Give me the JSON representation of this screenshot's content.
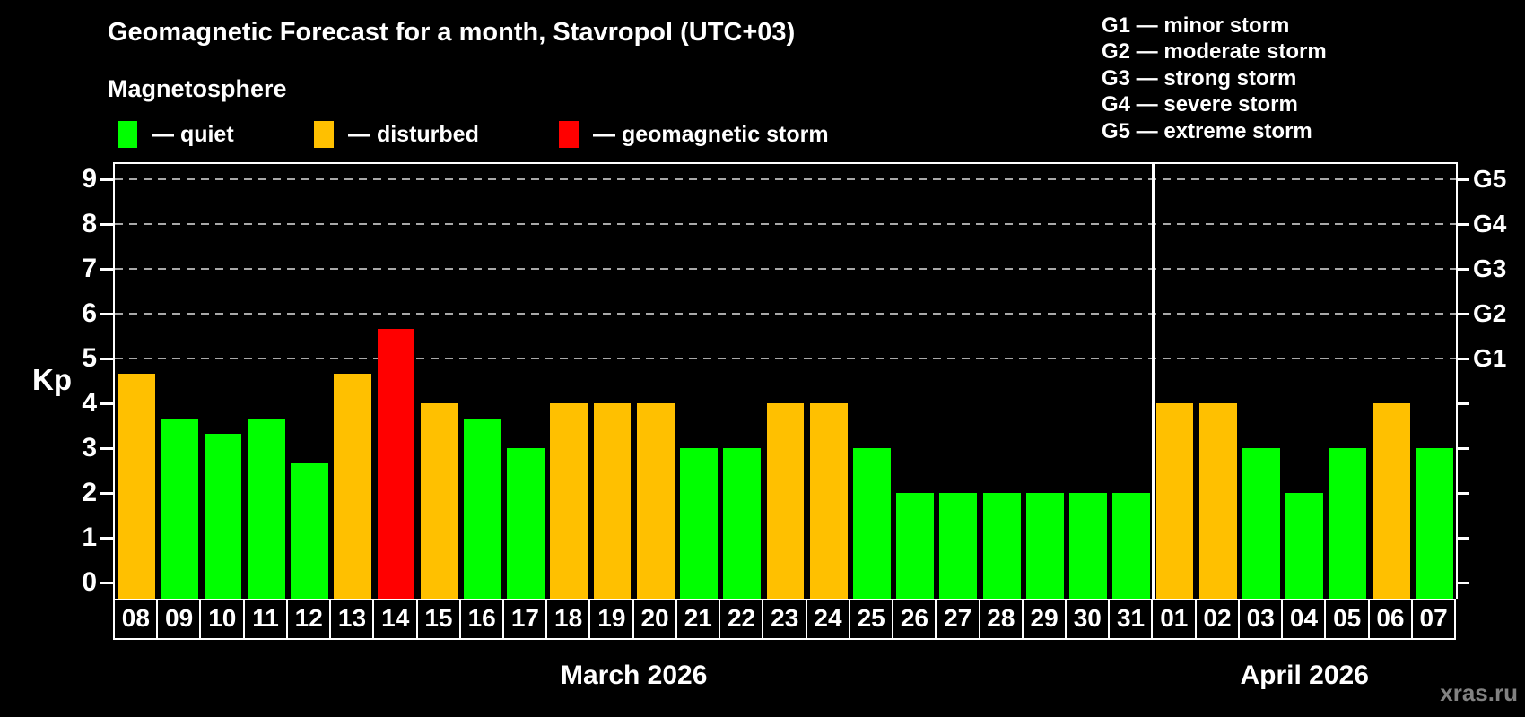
{
  "title": "Geomagnetic Forecast for a month, Stavropol (UTC+03)",
  "subtitle": "Magnetosphere",
  "watermark": "xras.ru",
  "legend": [
    {
      "key": "quiet",
      "label": "— quiet",
      "color": "#00ff00"
    },
    {
      "key": "disturbed",
      "label": "— disturbed",
      "color": "#ffc000"
    },
    {
      "key": "storm",
      "label": "— geomagnetic storm",
      "color": "#ff0000"
    }
  ],
  "storm_scale_legend": [
    "G1 — minor storm",
    "G2 — moderate storm",
    "G3 — strong storm",
    "G4 — severe storm",
    "G5 — extreme storm"
  ],
  "chart_data": {
    "type": "bar",
    "ylabel": "Kp",
    "ylim": [
      0,
      9.4
    ],
    "yticks": [
      0,
      1,
      2,
      3,
      4,
      5,
      6,
      7,
      8,
      9
    ],
    "gridlines_kp": [
      5,
      6,
      7,
      8,
      9
    ],
    "grid_style": "dashed",
    "right_axis": [
      {
        "kp": 5,
        "label": "G1"
      },
      {
        "kp": 6,
        "label": "G2"
      },
      {
        "kp": 7,
        "label": "G3"
      },
      {
        "kp": 8,
        "label": "G4"
      },
      {
        "kp": 9,
        "label": "G5"
      }
    ],
    "status_colors": {
      "quiet": "#00ff00",
      "disturbed": "#ffc000",
      "storm": "#ff0000"
    },
    "months": [
      {
        "label": "March 2026",
        "days": 24
      },
      {
        "label": "April 2026",
        "days": 7
      }
    ],
    "bars": [
      {
        "day": "08",
        "kp": 4.67,
        "condition": "disturbed"
      },
      {
        "day": "09",
        "kp": 3.67,
        "condition": "quiet"
      },
      {
        "day": "10",
        "kp": 3.33,
        "condition": "quiet"
      },
      {
        "day": "11",
        "kp": 3.67,
        "condition": "quiet"
      },
      {
        "day": "12",
        "kp": 2.67,
        "condition": "quiet"
      },
      {
        "day": "13",
        "kp": 4.67,
        "condition": "disturbed"
      },
      {
        "day": "14",
        "kp": 5.67,
        "condition": "storm"
      },
      {
        "day": "15",
        "kp": 4.0,
        "condition": "disturbed"
      },
      {
        "day": "16",
        "kp": 3.67,
        "condition": "quiet"
      },
      {
        "day": "17",
        "kp": 3.0,
        "condition": "quiet"
      },
      {
        "day": "18",
        "kp": 4.0,
        "condition": "disturbed"
      },
      {
        "day": "19",
        "kp": 4.0,
        "condition": "disturbed"
      },
      {
        "day": "20",
        "kp": 4.0,
        "condition": "disturbed"
      },
      {
        "day": "21",
        "kp": 3.0,
        "condition": "quiet"
      },
      {
        "day": "22",
        "kp": 3.0,
        "condition": "quiet"
      },
      {
        "day": "23",
        "kp": 4.0,
        "condition": "disturbed"
      },
      {
        "day": "24",
        "kp": 4.0,
        "condition": "disturbed"
      },
      {
        "day": "25",
        "kp": 3.0,
        "condition": "quiet"
      },
      {
        "day": "26",
        "kp": 2.0,
        "condition": "quiet"
      },
      {
        "day": "27",
        "kp": 2.0,
        "condition": "quiet"
      },
      {
        "day": "28",
        "kp": 2.0,
        "condition": "quiet"
      },
      {
        "day": "29",
        "kp": 2.0,
        "condition": "quiet"
      },
      {
        "day": "30",
        "kp": 2.0,
        "condition": "quiet"
      },
      {
        "day": "31",
        "kp": 2.0,
        "condition": "quiet"
      },
      {
        "day": "01",
        "kp": 4.0,
        "condition": "disturbed"
      },
      {
        "day": "02",
        "kp": 4.0,
        "condition": "disturbed"
      },
      {
        "day": "03",
        "kp": 3.0,
        "condition": "quiet"
      },
      {
        "day": "04",
        "kp": 2.0,
        "condition": "quiet"
      },
      {
        "day": "05",
        "kp": 3.0,
        "condition": "quiet"
      },
      {
        "day": "06",
        "kp": 4.0,
        "condition": "disturbed"
      },
      {
        "day": "07",
        "kp": 3.0,
        "condition": "quiet"
      }
    ]
  }
}
